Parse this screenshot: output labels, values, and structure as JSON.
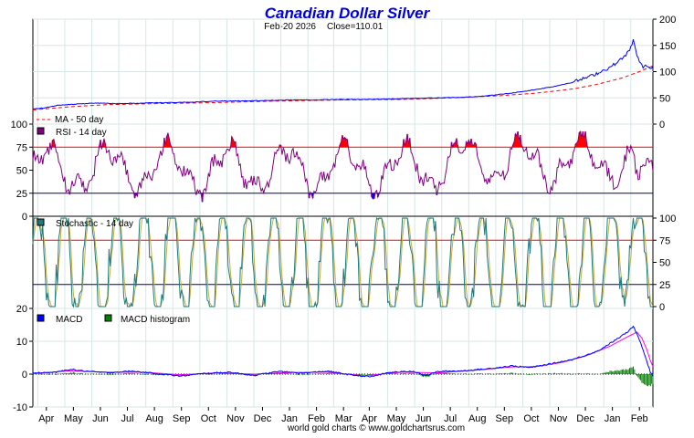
{
  "chart_data": {
    "type": "line",
    "title": "Canadian Dollar Silver",
    "subtitle_date": "Feb-20  2026",
    "subtitle_close": "Close=110.01",
    "footer": "world gold charts © www.goldchartsrus.com",
    "months": [
      "Apr",
      "May",
      "Jun",
      "Jul",
      "Aug",
      "Sep",
      "Oct",
      "Nov",
      "Dec",
      "Jan",
      "Feb",
      "Mar",
      "Apr",
      "May",
      "Jun",
      "Jul",
      "Aug",
      "Sep",
      "Oct",
      "Nov",
      "Dec",
      "Jan",
      "Feb"
    ],
    "colors": {
      "title": "#0000dd",
      "price": "#0000ff",
      "ma": "#ff0000",
      "rsi": "#800080",
      "rsi_fill": "#ff0000",
      "rsi_low_fill": "#0000ff",
      "stoch_k": "#1f7a7a",
      "stoch_d": "#c0b040",
      "macd": "#0000ff",
      "macd_signal": "#ff00ff",
      "hist": "#008000",
      "ref_line_red": "#ff0000",
      "ref_line_blue": "#000080",
      "grid": "#d8e6e6"
    },
    "panels": [
      {
        "name": "price",
        "ylim": [
          0,
          200
        ],
        "yticks": [
          0,
          50,
          100,
          150,
          200
        ],
        "legend": [
          {
            "label": "MA - 50 day",
            "style": "dash"
          }
        ],
        "price_anchors": [
          [
            0,
            29
          ],
          [
            10,
            31
          ],
          [
            20,
            36
          ],
          [
            35,
            38
          ],
          [
            50,
            40
          ],
          [
            70,
            39
          ],
          [
            90,
            40
          ],
          [
            110,
            41
          ],
          [
            130,
            42
          ],
          [
            150,
            44
          ],
          [
            170,
            44
          ],
          [
            190,
            45
          ],
          [
            210,
            46
          ],
          [
            230,
            46
          ],
          [
            250,
            47
          ],
          [
            270,
            47
          ],
          [
            290,
            48
          ],
          [
            310,
            49
          ],
          [
            330,
            50
          ],
          [
            350,
            51
          ],
          [
            370,
            54
          ],
          [
            390,
            59
          ],
          [
            410,
            66
          ],
          [
            425,
            72
          ],
          [
            440,
            80
          ],
          [
            455,
            92
          ],
          [
            470,
            108
          ],
          [
            480,
            125
          ],
          [
            486,
            140
          ],
          [
            489,
            160
          ],
          [
            491,
            140
          ],
          [
            494,
            118
          ],
          [
            497,
            108
          ],
          [
            500,
            112
          ],
          [
            503,
            105
          ],
          [
            506,
            110
          ]
        ],
        "ma_anchors": [
          [
            0,
            27
          ],
          [
            30,
            33
          ],
          [
            60,
            37
          ],
          [
            100,
            39
          ],
          [
            150,
            41
          ],
          [
            200,
            44
          ],
          [
            250,
            46
          ],
          [
            300,
            47
          ],
          [
            340,
            50
          ],
          [
            380,
            54
          ],
          [
            410,
            59
          ],
          [
            440,
            67
          ],
          [
            460,
            76
          ],
          [
            480,
            88
          ],
          [
            494,
            100
          ],
          [
            506,
            112
          ]
        ],
        "close": 110.01
      },
      {
        "name": "rsi",
        "label": "RSI - 14 day",
        "ylim": [
          0,
          100
        ],
        "left_ticks": [
          0,
          25,
          50,
          75,
          100
        ],
        "overbought": 75,
        "oversold": 25
      },
      {
        "name": "stochastic",
        "label": "Stochastic - 14 day",
        "ylim": [
          0,
          100
        ],
        "right_ticks": [
          0,
          25,
          50,
          75,
          100
        ],
        "upper": 75,
        "lower": 25
      },
      {
        "name": "macd",
        "legend": [
          {
            "label": "MACD",
            "color_key": "macd"
          },
          {
            "label": "MACD histogram",
            "color_key": "hist"
          }
        ],
        "ylim": [
          -10,
          20
        ],
        "left_ticks": [
          -10,
          0,
          10,
          20
        ],
        "macd_anchors": [
          [
            0,
            0.3
          ],
          [
            20,
            0.6
          ],
          [
            30,
            1.5
          ],
          [
            40,
            1.0
          ],
          [
            60,
            0.4
          ],
          [
            80,
            0.9
          ],
          [
            100,
            0.2
          ],
          [
            120,
            -0.6
          ],
          [
            140,
            0.2
          ],
          [
            160,
            0.6
          ],
          [
            180,
            -0.4
          ],
          [
            200,
            0.8
          ],
          [
            220,
            0.3
          ],
          [
            240,
            0.9
          ],
          [
            260,
            -0.3
          ],
          [
            275,
            -0.8
          ],
          [
            290,
            0.5
          ],
          [
            310,
            0.9
          ],
          [
            320,
            -0.5
          ],
          [
            330,
            0.8
          ],
          [
            350,
            1.0
          ],
          [
            370,
            1.6
          ],
          [
            390,
            2.5
          ],
          [
            405,
            2.0
          ],
          [
            420,
            3.0
          ],
          [
            440,
            4.5
          ],
          [
            460,
            7.0
          ],
          [
            475,
            10.5
          ],
          [
            485,
            13.0
          ],
          [
            489,
            14.5
          ],
          [
            493,
            11.5
          ],
          [
            497,
            7.5
          ],
          [
            500,
            4.0
          ],
          [
            503,
            0.5
          ],
          [
            506,
            -1.0
          ]
        ],
        "signal_anchors": [
          [
            0,
            0.2
          ],
          [
            30,
            1.0
          ],
          [
            60,
            0.6
          ],
          [
            90,
            0.6
          ],
          [
            120,
            -0.2
          ],
          [
            150,
            0.4
          ],
          [
            180,
            0.0
          ],
          [
            210,
            0.5
          ],
          [
            240,
            0.6
          ],
          [
            270,
            -0.5
          ],
          [
            300,
            0.6
          ],
          [
            330,
            0.4
          ],
          [
            360,
            1.2
          ],
          [
            390,
            2.2
          ],
          [
            410,
            2.3
          ],
          [
            430,
            3.5
          ],
          [
            450,
            5.5
          ],
          [
            470,
            8.5
          ],
          [
            485,
            11.5
          ],
          [
            492,
            12.8
          ],
          [
            496,
            11.0
          ],
          [
            500,
            7.5
          ],
          [
            503,
            4.0
          ],
          [
            506,
            1.5
          ]
        ]
      }
    ]
  }
}
